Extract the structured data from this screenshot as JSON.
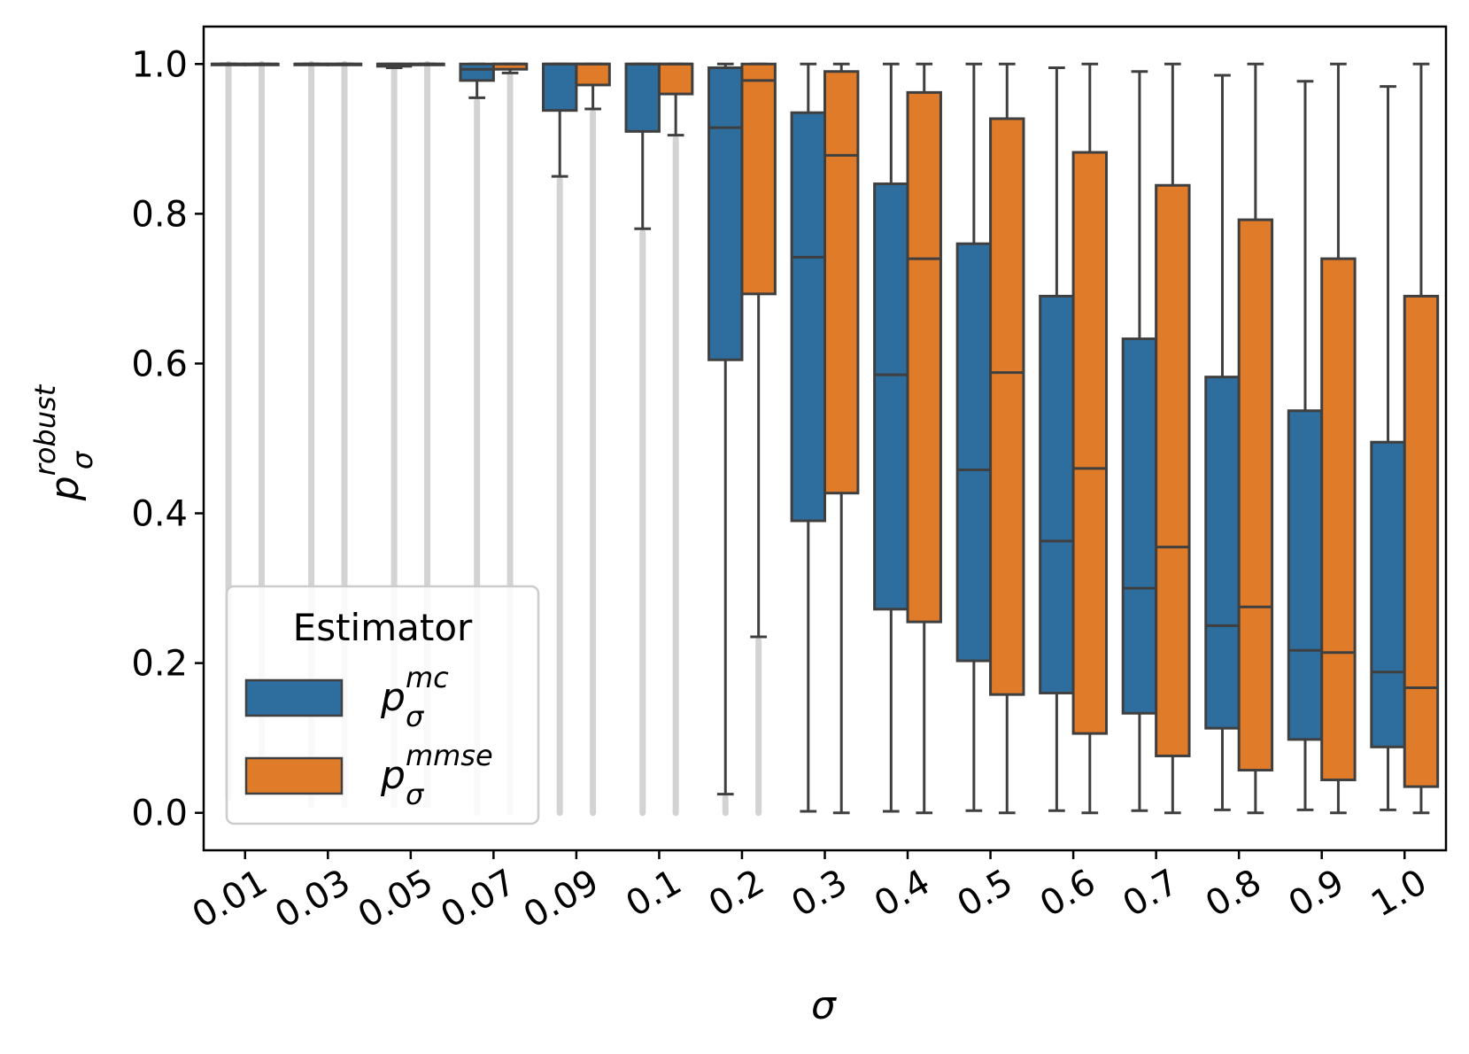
{
  "chart_data": {
    "type": "boxplot",
    "xlabel": "σ",
    "ylabel": {
      "base": "p",
      "sub": "σ",
      "sup": "robust"
    },
    "ylim": [
      -0.05,
      1.05
    ],
    "yticks": [
      "0.0",
      "0.2",
      "0.4",
      "0.6",
      "0.8",
      "1.0"
    ],
    "categories": [
      "0.01",
      "0.03",
      "0.05",
      "0.07",
      "0.09",
      "0.1",
      "0.2",
      "0.3",
      "0.4",
      "0.5",
      "0.6",
      "0.7",
      "0.8",
      "0.9",
      "1.0"
    ],
    "legend": {
      "title": "Estimator",
      "placement": "lower-left",
      "entries": [
        {
          "base": "p",
          "sub": "σ",
          "sup": "mc",
          "color": "#2e6e9e"
        },
        {
          "base": "p",
          "sub": "σ",
          "sup": "mmse",
          "color": "#e07b2a"
        }
      ]
    },
    "outlier_color": "#d3d3d3",
    "line_color": "#3f3f3f",
    "series": [
      {
        "name": "mc",
        "color": "#2e6e9e",
        "boxes": [
          {
            "whislo": 1.0,
            "q1": 1.0,
            "median": 1.0,
            "q3": 1.0,
            "whishi": 1.0,
            "outliers": [
              0.02,
              1.0
            ]
          },
          {
            "whislo": 1.0,
            "q1": 1.0,
            "median": 1.0,
            "q3": 1.0,
            "whishi": 1.0,
            "outliers": [
              0.01,
              1.0
            ]
          },
          {
            "whislo": 0.995,
            "q1": 0.997,
            "median": 1.0,
            "q3": 1.0,
            "whishi": 1.0,
            "outliers": [
              0.01,
              0.994
            ]
          },
          {
            "whislo": 0.955,
            "q1": 0.978,
            "median": 0.993,
            "q3": 1.0,
            "whishi": 1.0,
            "outliers": [
              0.0,
              0.95
            ]
          },
          {
            "whislo": 0.85,
            "q1": 0.938,
            "median": 1.0,
            "q3": 1.0,
            "whishi": 1.0,
            "outliers": [
              0.0,
              0.845
            ]
          },
          {
            "whislo": 0.78,
            "q1": 0.91,
            "median": 1.0,
            "q3": 1.0,
            "whishi": 1.0,
            "outliers": [
              0.0,
              0.775
            ]
          },
          {
            "whislo": 0.025,
            "q1": 0.605,
            "median": 0.915,
            "q3": 0.995,
            "whishi": 1.0,
            "outliers": [
              0.0,
              0.02
            ]
          },
          {
            "whislo": 0.002,
            "q1": 0.39,
            "median": 0.742,
            "q3": 0.935,
            "whishi": 1.0,
            "outliers": []
          },
          {
            "whislo": 0.002,
            "q1": 0.272,
            "median": 0.585,
            "q3": 0.84,
            "whishi": 1.0,
            "outliers": []
          },
          {
            "whislo": 0.003,
            "q1": 0.203,
            "median": 0.458,
            "q3": 0.76,
            "whishi": 1.0,
            "outliers": []
          },
          {
            "whislo": 0.003,
            "q1": 0.16,
            "median": 0.363,
            "q3": 0.69,
            "whishi": 0.995,
            "outliers": []
          },
          {
            "whislo": 0.003,
            "q1": 0.133,
            "median": 0.3,
            "q3": 0.633,
            "whishi": 0.99,
            "outliers": []
          },
          {
            "whislo": 0.004,
            "q1": 0.113,
            "median": 0.25,
            "q3": 0.582,
            "whishi": 0.985,
            "outliers": []
          },
          {
            "whislo": 0.004,
            "q1": 0.098,
            "median": 0.217,
            "q3": 0.537,
            "whishi": 0.977,
            "outliers": []
          },
          {
            "whislo": 0.004,
            "q1": 0.088,
            "median": 0.188,
            "q3": 0.495,
            "whishi": 0.97,
            "outliers": []
          }
        ]
      },
      {
        "name": "mmse",
        "color": "#e07b2a",
        "boxes": [
          {
            "whislo": 1.0,
            "q1": 1.0,
            "median": 1.0,
            "q3": 1.0,
            "whishi": 1.0,
            "outliers": [
              0.03,
              1.0
            ]
          },
          {
            "whislo": 1.0,
            "q1": 1.0,
            "median": 1.0,
            "q3": 1.0,
            "whishi": 1.0,
            "outliers": [
              0.01,
              1.0
            ]
          },
          {
            "whislo": 1.0,
            "q1": 1.0,
            "median": 1.0,
            "q3": 1.0,
            "whishi": 1.0,
            "outliers": [
              0.01,
              1.0
            ]
          },
          {
            "whislo": 0.988,
            "q1": 0.993,
            "median": 1.0,
            "q3": 1.0,
            "whishi": 1.0,
            "outliers": [
              0.0,
              0.985
            ]
          },
          {
            "whislo": 0.94,
            "q1": 0.972,
            "median": 1.0,
            "q3": 1.0,
            "whishi": 1.0,
            "outliers": [
              0.0,
              0.935
            ]
          },
          {
            "whislo": 0.905,
            "q1": 0.96,
            "median": 1.0,
            "q3": 1.0,
            "whishi": 1.0,
            "outliers": [
              0.0,
              0.9
            ]
          },
          {
            "whislo": 0.235,
            "q1": 0.693,
            "median": 0.978,
            "q3": 1.0,
            "whishi": 1.0,
            "outliers": [
              0.0,
              0.23
            ]
          },
          {
            "whislo": 0.0,
            "q1": 0.427,
            "median": 0.878,
            "q3": 0.99,
            "whishi": 1.0,
            "outliers": []
          },
          {
            "whislo": 0.0,
            "q1": 0.255,
            "median": 0.74,
            "q3": 0.962,
            "whishi": 1.0,
            "outliers": []
          },
          {
            "whislo": 0.0,
            "q1": 0.158,
            "median": 0.588,
            "q3": 0.927,
            "whishi": 1.0,
            "outliers": []
          },
          {
            "whislo": 0.0,
            "q1": 0.106,
            "median": 0.46,
            "q3": 0.882,
            "whishi": 1.0,
            "outliers": []
          },
          {
            "whislo": 0.0,
            "q1": 0.076,
            "median": 0.355,
            "q3": 0.838,
            "whishi": 1.0,
            "outliers": []
          },
          {
            "whislo": 0.0,
            "q1": 0.057,
            "median": 0.275,
            "q3": 0.792,
            "whishi": 1.0,
            "outliers": []
          },
          {
            "whislo": 0.0,
            "q1": 0.044,
            "median": 0.214,
            "q3": 0.74,
            "whishi": 1.0,
            "outliers": []
          },
          {
            "whislo": 0.0,
            "q1": 0.035,
            "median": 0.167,
            "q3": 0.69,
            "whishi": 1.0,
            "outliers": []
          }
        ]
      }
    ]
  }
}
